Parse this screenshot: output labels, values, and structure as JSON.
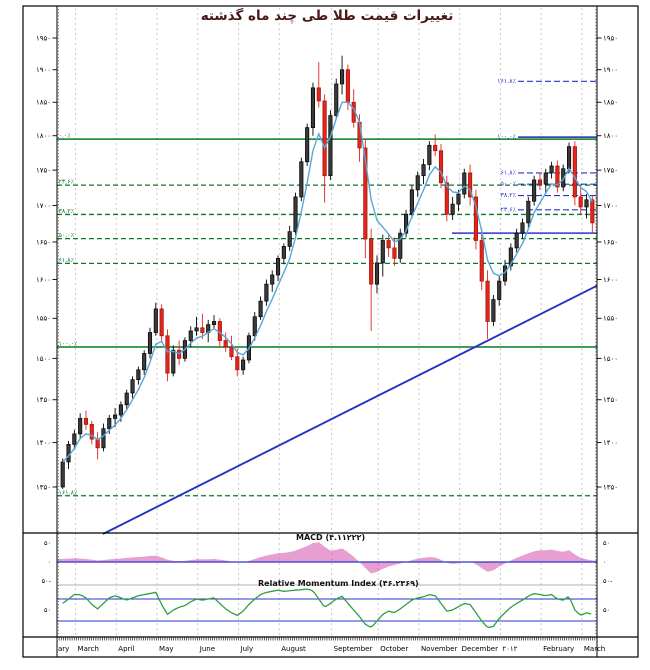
{
  "title": {
    "text": "تغییرات قیمت طلا طی چند ماه گذشته"
  },
  "colors": {
    "title": "#4a1717",
    "candle_up_fill": "#3a3a3a",
    "candle_up_border": "#000000",
    "candle_down": "#e3261c",
    "candle_down_border": "#9e1008",
    "moving_average": "#55a8d9",
    "grid": "#c9c9c9",
    "fib_green": "#067a28",
    "fib_blue": "#2838c8",
    "trendline": "#2433c0",
    "macd_histogram": "#d45fb0",
    "macd_zero_line": "#2b35c8",
    "rmi_line": "#2f9e42",
    "rmi_level_lines": "#2b35c8",
    "axis_text": "#000000"
  },
  "chart_data": [
    {
      "type": "candlestick",
      "name": "gold-price-panel",
      "title": "تغییرات قیمت طلا طی چند ماه گذشته",
      "ylim": [
        1300,
        1980
      ],
      "y_scale": "log",
      "y_ticks": [
        {
          "v": 1950,
          "label": "۱۹۵۰"
        },
        {
          "v": 1900,
          "label": "۱۹۰۰"
        },
        {
          "v": 1850,
          "label": "۱۸۵۰"
        },
        {
          "v": 1800,
          "label": "۱۸۰۰"
        },
        {
          "v": 1750,
          "label": "۱۷۵۰"
        },
        {
          "v": 1700,
          "label": "۱۷۰۰"
        },
        {
          "v": 1650,
          "label": "۱۶۵۰"
        },
        {
          "v": 1600,
          "label": "۱۶۰۰"
        },
        {
          "v": 1550,
          "label": "۱۵۵۰"
        },
        {
          "v": 1500,
          "label": "۱۵۰۰"
        },
        {
          "v": 1450,
          "label": "۱۴۵۰"
        },
        {
          "v": 1400,
          "label": "۱۴۰۰"
        },
        {
          "v": 1350,
          "label": "۱۳۵۰"
        }
      ],
      "x_months": {
        "labels": [
          "ary",
          "March",
          "April",
          "May",
          "June",
          "July",
          "August",
          "September",
          "October",
          "November",
          "December",
          "۲۰۱۲",
          "February",
          "March"
        ],
        "starts": [
          0,
          3,
          10,
          17,
          24,
          31,
          38,
          47,
          55,
          62,
          69,
          76,
          83,
          90
        ]
      },
      "candle_format": "[open,high,low,close]",
      "candles": [
        [
          1350,
          1382,
          1348,
          1378
        ],
        [
          1378,
          1402,
          1370,
          1398
        ],
        [
          1398,
          1415,
          1392,
          1410
        ],
        [
          1410,
          1434,
          1404,
          1428
        ],
        [
          1428,
          1437,
          1415,
          1421
        ],
        [
          1421,
          1425,
          1398,
          1404
        ],
        [
          1404,
          1412,
          1381,
          1394
        ],
        [
          1394,
          1422,
          1390,
          1416
        ],
        [
          1416,
          1432,
          1410,
          1428
        ],
        [
          1428,
          1440,
          1418,
          1432
        ],
        [
          1432,
          1448,
          1424,
          1444
        ],
        [
          1444,
          1462,
          1438,
          1458
        ],
        [
          1458,
          1478,
          1452,
          1474
        ],
        [
          1474,
          1490,
          1468,
          1486
        ],
        [
          1486,
          1510,
          1480,
          1506
        ],
        [
          1506,
          1538,
          1500,
          1532
        ],
        [
          1532,
          1570,
          1528,
          1562
        ],
        [
          1562,
          1568,
          1520,
          1528
        ],
        [
          1528,
          1536,
          1472,
          1482
        ],
        [
          1482,
          1516,
          1478,
          1510
        ],
        [
          1510,
          1522,
          1492,
          1500
        ],
        [
          1500,
          1526,
          1496,
          1522
        ],
        [
          1522,
          1540,
          1514,
          1534
        ],
        [
          1534,
          1552,
          1528,
          1538
        ],
        [
          1538,
          1556,
          1524,
          1532
        ],
        [
          1532,
          1548,
          1520,
          1542
        ],
        [
          1542,
          1554,
          1536,
          1546
        ],
        [
          1546,
          1550,
          1514,
          1522
        ],
        [
          1522,
          1532,
          1508,
          1514
        ],
        [
          1514,
          1528,
          1498,
          1502
        ],
        [
          1502,
          1512,
          1478,
          1486
        ],
        [
          1486,
          1502,
          1480,
          1498
        ],
        [
          1498,
          1532,
          1494,
          1528
        ],
        [
          1528,
          1558,
          1522,
          1552
        ],
        [
          1552,
          1578,
          1548,
          1572
        ],
        [
          1572,
          1600,
          1566,
          1594
        ],
        [
          1594,
          1612,
          1584,
          1606
        ],
        [
          1606,
          1632,
          1598,
          1628
        ],
        [
          1628,
          1648,
          1620,
          1644
        ],
        [
          1644,
          1672,
          1638,
          1664
        ],
        [
          1664,
          1718,
          1660,
          1712
        ],
        [
          1712,
          1768,
          1706,
          1762
        ],
        [
          1762,
          1818,
          1756,
          1812
        ],
        [
          1812,
          1880,
          1800,
          1872
        ],
        [
          1872,
          1912,
          1842,
          1852
        ],
        [
          1852,
          1862,
          1704,
          1742
        ],
        [
          1742,
          1838,
          1736,
          1830
        ],
        [
          1830,
          1886,
          1824,
          1878
        ],
        [
          1878,
          1922,
          1862,
          1900
        ],
        [
          1900,
          1908,
          1838,
          1850
        ],
        [
          1850,
          1870,
          1812,
          1820
        ],
        [
          1820,
          1832,
          1762,
          1782
        ],
        [
          1782,
          1796,
          1628,
          1654
        ],
        [
          1654,
          1668,
          1534,
          1594
        ],
        [
          1594,
          1632,
          1582,
          1622
        ],
        [
          1622,
          1660,
          1604,
          1652
        ],
        [
          1652,
          1662,
          1630,
          1642
        ],
        [
          1642,
          1656,
          1618,
          1628
        ],
        [
          1628,
          1668,
          1622,
          1662
        ],
        [
          1662,
          1694,
          1656,
          1688
        ],
        [
          1688,
          1728,
          1682,
          1722
        ],
        [
          1722,
          1748,
          1712,
          1742
        ],
        [
          1742,
          1766,
          1730,
          1758
        ],
        [
          1758,
          1792,
          1750,
          1786
        ],
        [
          1786,
          1802,
          1770,
          1778
        ],
        [
          1778,
          1788,
          1724,
          1732
        ],
        [
          1732,
          1742,
          1678,
          1688
        ],
        [
          1688,
          1712,
          1680,
          1702
        ],
        [
          1702,
          1722,
          1692,
          1716
        ],
        [
          1716,
          1752,
          1710,
          1746
        ],
        [
          1746,
          1758,
          1700,
          1712
        ],
        [
          1712,
          1722,
          1640,
          1652
        ],
        [
          1652,
          1668,
          1586,
          1598
        ],
        [
          1598,
          1612,
          1524,
          1546
        ],
        [
          1546,
          1580,
          1540,
          1574
        ],
        [
          1574,
          1606,
          1566,
          1598
        ],
        [
          1598,
          1626,
          1592,
          1618
        ],
        [
          1618,
          1648,
          1612,
          1642
        ],
        [
          1642,
          1668,
          1636,
          1662
        ],
        [
          1662,
          1682,
          1654,
          1676
        ],
        [
          1676,
          1712,
          1670,
          1706
        ],
        [
          1706,
          1742,
          1700,
          1736
        ],
        [
          1736,
          1746,
          1722,
          1730
        ],
        [
          1730,
          1752,
          1716,
          1746
        ],
        [
          1746,
          1762,
          1738,
          1756
        ],
        [
          1756,
          1764,
          1718,
          1726
        ],
        [
          1726,
          1758,
          1720,
          1752
        ],
        [
          1752,
          1790,
          1746,
          1784
        ],
        [
          1784,
          1792,
          1700,
          1712
        ],
        [
          1712,
          1724,
          1688,
          1698
        ],
        [
          1698,
          1716,
          1682,
          1708
        ],
        [
          1708,
          1714,
          1662,
          1676
        ]
      ],
      "moving_average": {
        "style": "ema",
        "period": 5
      },
      "fibonacci_green": {
        "high": 1795,
        "low": 1514,
        "levels": [
          0,
          23.6,
          38.2,
          50,
          61.8,
          100,
          161.8
        ],
        "labels": [
          "۰.۰٪",
          "۲۳.۶٪",
          "۳۸.۲٪",
          "۵۰.۰٪",
          "۶۱.۸٪",
          "۱۰۰.۰٪",
          "۱۶۱.۸٪"
        ],
        "solid": [
          0,
          100
        ]
      },
      "fibonacci_blue": {
        "high": 1798,
        "low": 1662,
        "levels": [
          0,
          23.6,
          38.2,
          50,
          61.8,
          100,
          161.8
        ],
        "labels": [
          "",
          "۲۳.۶٪",
          "۳۸.۲٪",
          "۵۰.۰٪",
          "۶۱.۸٪",
          "۱۰۰.۰٪",
          "۱۶۱.۸٪"
        ],
        "solid": [
          0,
          100
        ]
      },
      "trendline": {
        "i1": 7.2,
        "p1": 1299,
        "i2": 92.1,
        "p2": 1592
      }
    },
    {
      "type": "bar",
      "name": "macd-panel",
      "label": "MACD (۴.۱۱۲۲۲)",
      "ylim": [
        -60,
        60
      ],
      "ticks": [
        {
          "v": 50,
          "label": "۵۰"
        },
        {
          "v": 0,
          "label": "۰"
        },
        {
          "v": -50,
          "label": "۵۰-"
        }
      ],
      "values": [
        8,
        9,
        10,
        9,
        8,
        6,
        4,
        5,
        7,
        8,
        9,
        11,
        12,
        13,
        14,
        16,
        17,
        12,
        6,
        3,
        2,
        3,
        5,
        7,
        7,
        7,
        8,
        6,
        4,
        1,
        -1,
        0,
        3,
        8,
        13,
        17,
        20,
        23,
        24,
        26,
        30,
        36,
        42,
        50,
        52,
        40,
        30,
        32,
        36,
        26,
        14,
        0,
        -16,
        -30,
        -26,
        -18,
        -12,
        -8,
        -4,
        0,
        5,
        9,
        11,
        13,
        12,
        6,
        -2,
        -5,
        -3,
        1,
        2,
        -6,
        -16,
        -26,
        -22,
        -12,
        -4,
        4,
        11,
        17,
        23,
        28,
        31,
        31,
        33,
        29,
        27,
        31,
        20,
        11,
        7,
        4
      ]
    },
    {
      "type": "line",
      "name": "rmi-panel",
      "label": "Relative Momentum Index (۴۶.۲۳۶۹)",
      "ylim": [
        0,
        95
      ],
      "levels": [
        70,
        30
      ],
      "ticks": [
        {
          "v": 50,
          "label": "۵۰"
        }
      ],
      "values": [
        62,
        70,
        78,
        78,
        72,
        60,
        52,
        62,
        72,
        76,
        72,
        68,
        72,
        76,
        78,
        80,
        82,
        60,
        42,
        50,
        55,
        58,
        65,
        70,
        68,
        70,
        72,
        62,
        52,
        45,
        40,
        48,
        60,
        70,
        78,
        82,
        84,
        86,
        84,
        85,
        86,
        87,
        88,
        85,
        70,
        55,
        62,
        70,
        75,
        62,
        50,
        38,
        24,
        18,
        30,
        42,
        48,
        45,
        52,
        60,
        68,
        72,
        74,
        78,
        76,
        62,
        48,
        50,
        56,
        62,
        60,
        45,
        30,
        18,
        20,
        35,
        45,
        55,
        62,
        68,
        75,
        80,
        78,
        76,
        78,
        70,
        68,
        75,
        50,
        40,
        45,
        42
      ]
    }
  ]
}
